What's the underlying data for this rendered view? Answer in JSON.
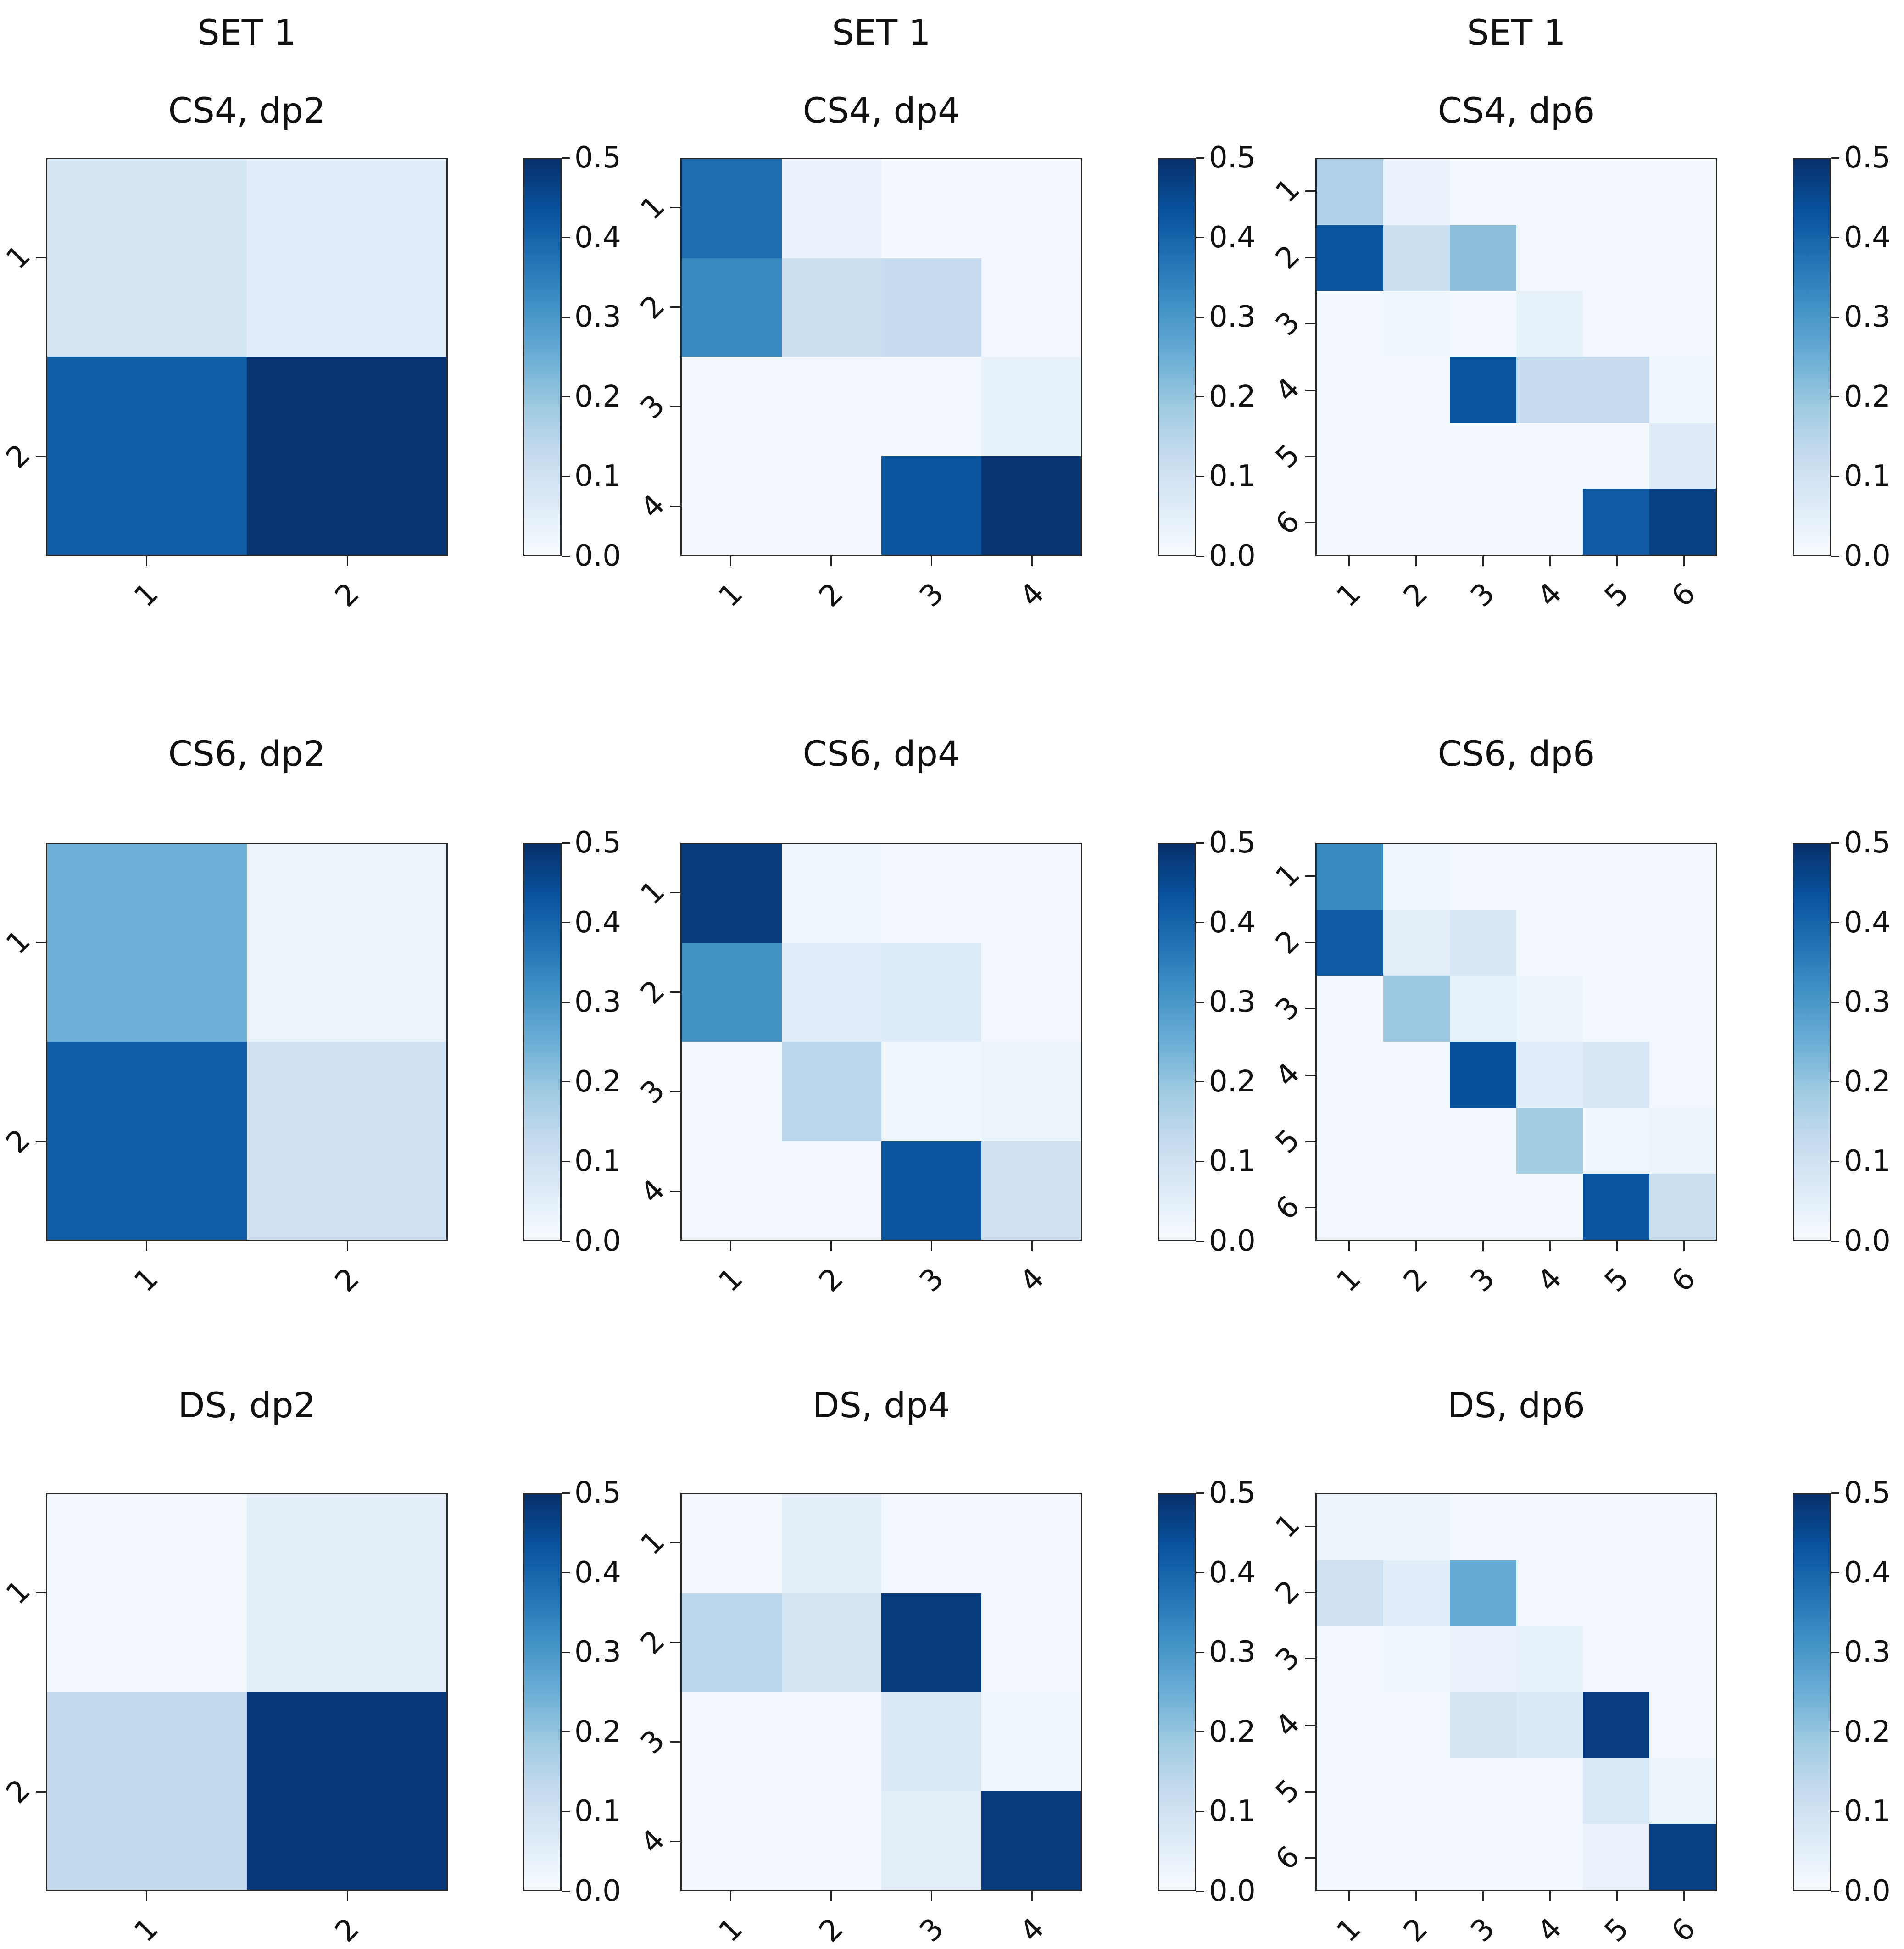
{
  "figure": {
    "suptitle": "SET 1",
    "background": "#ffffff",
    "text_color": "#111111"
  },
  "colorbar": {
    "vmin": 0.0,
    "vmax": 0.5,
    "ticks": [
      "0.0",
      "0.1",
      "0.2",
      "0.3",
      "0.4",
      "0.5"
    ],
    "orientation": "vertical",
    "colormap_name": "Blues",
    "colormap": [
      {
        "at": 0.0,
        "color": "#f7fbff"
      },
      {
        "at": 0.125,
        "color": "#deebf7"
      },
      {
        "at": 0.25,
        "color": "#c6dbef"
      },
      {
        "at": 0.375,
        "color": "#9ecae1"
      },
      {
        "at": 0.5,
        "color": "#6baed6"
      },
      {
        "at": 0.625,
        "color": "#4292c6"
      },
      {
        "at": 0.75,
        "color": "#2171b5"
      },
      {
        "at": 0.875,
        "color": "#08519c"
      },
      {
        "at": 1.0,
        "color": "#08306b"
      }
    ]
  },
  "chart_data": [
    {
      "type": "heatmap",
      "suptitle": "SET 1",
      "title": "CS4, dp2",
      "row_labels": [
        "1",
        "2"
      ],
      "col_labels": [
        "1",
        "2"
      ],
      "vmin": 0.0,
      "vmax": 0.5,
      "values": [
        [
          0.09,
          0.055
        ],
        [
          0.41,
          0.49
        ]
      ]
    },
    {
      "type": "heatmap",
      "suptitle": "SET 1",
      "title": "CS4, dp4",
      "row_labels": [
        "1",
        "2",
        "3",
        "4"
      ],
      "col_labels": [
        "1",
        "2",
        "3",
        "4"
      ],
      "vmin": 0.0,
      "vmax": 0.5,
      "values": [
        [
          0.38,
          0.035,
          0.01,
          0.01
        ],
        [
          0.33,
          0.11,
          0.12,
          0.015
        ],
        [
          0.01,
          0.015,
          0.01,
          0.04
        ],
        [
          0.01,
          0.01,
          0.43,
          0.49
        ]
      ]
    },
    {
      "type": "heatmap",
      "suptitle": "SET 1",
      "title": "CS4, dp6",
      "row_labels": [
        "1",
        "2",
        "3",
        "4",
        "5",
        "6"
      ],
      "col_labels": [
        "1",
        "2",
        "3",
        "4",
        "5",
        "6"
      ],
      "vmin": 0.0,
      "vmax": 0.5,
      "values": [
        [
          0.16,
          0.035,
          0.01,
          0.01,
          0.01,
          0.01
        ],
        [
          0.43,
          0.11,
          0.21,
          0.015,
          0.01,
          0.01
        ],
        [
          0.01,
          0.02,
          0.01,
          0.04,
          0.01,
          0.01
        ],
        [
          0.01,
          0.01,
          0.43,
          0.12,
          0.12,
          0.02
        ],
        [
          0.01,
          0.01,
          0.01,
          0.01,
          0.01,
          0.06
        ],
        [
          0.01,
          0.01,
          0.01,
          0.01,
          0.42,
          0.47
        ]
      ]
    },
    {
      "type": "heatmap",
      "title": "CS6, dp2",
      "row_labels": [
        "1",
        "2"
      ],
      "col_labels": [
        "1",
        "2"
      ],
      "vmin": 0.0,
      "vmax": 0.5,
      "values": [
        [
          0.25,
          0.03
        ],
        [
          0.41,
          0.105
        ]
      ]
    },
    {
      "type": "heatmap",
      "title": "CS6, dp4",
      "row_labels": [
        "1",
        "2",
        "3",
        "4"
      ],
      "col_labels": [
        "1",
        "2",
        "3",
        "4"
      ],
      "vmin": 0.0,
      "vmax": 0.5,
      "values": [
        [
          0.48,
          0.02,
          0.012,
          0.01
        ],
        [
          0.31,
          0.055,
          0.065,
          0.015
        ],
        [
          0.012,
          0.145,
          0.02,
          0.03
        ],
        [
          0.012,
          0.013,
          0.43,
          0.1
        ]
      ]
    },
    {
      "type": "heatmap",
      "title": "CS6, dp6",
      "row_labels": [
        "1",
        "2",
        "3",
        "4",
        "5",
        "6"
      ],
      "col_labels": [
        "1",
        "2",
        "3",
        "4",
        "5",
        "6"
      ],
      "vmin": 0.0,
      "vmax": 0.5,
      "values": [
        [
          0.33,
          0.018,
          0.01,
          0.01,
          0.01,
          0.01
        ],
        [
          0.42,
          0.05,
          0.08,
          0.01,
          0.01,
          0.01
        ],
        [
          0.01,
          0.19,
          0.04,
          0.025,
          0.01,
          0.01
        ],
        [
          0.01,
          0.01,
          0.44,
          0.055,
          0.08,
          0.015
        ],
        [
          0.01,
          0.01,
          0.01,
          0.18,
          0.02,
          0.03
        ],
        [
          0.01,
          0.01,
          0.01,
          0.01,
          0.43,
          0.11
        ]
      ]
    },
    {
      "type": "heatmap",
      "title": "DS, dp2",
      "row_labels": [
        "1",
        "2"
      ],
      "col_labels": [
        "1",
        "2"
      ],
      "vmin": 0.0,
      "vmax": 0.5,
      "values": [
        [
          0.012,
          0.045
        ],
        [
          0.13,
          0.485
        ]
      ]
    },
    {
      "type": "heatmap",
      "title": "DS, dp4",
      "row_labels": [
        "1",
        "2",
        "3",
        "4"
      ],
      "col_labels": [
        "1",
        "2",
        "3",
        "4"
      ],
      "vmin": 0.0,
      "vmax": 0.5,
      "values": [
        [
          0.01,
          0.045,
          0.015,
          0.01
        ],
        [
          0.14,
          0.09,
          0.48,
          0.01
        ],
        [
          0.015,
          0.015,
          0.07,
          0.02
        ],
        [
          0.01,
          0.012,
          0.05,
          0.48
        ]
      ]
    },
    {
      "type": "heatmap",
      "title": "DS, dp6",
      "row_labels": [
        "1",
        "2",
        "3",
        "4",
        "5",
        "6"
      ],
      "col_labels": [
        "1",
        "2",
        "3",
        "4",
        "5",
        "6"
      ],
      "vmin": 0.0,
      "vmax": 0.5,
      "values": [
        [
          0.03,
          0.025,
          0.01,
          0.01,
          0.01,
          0.01
        ],
        [
          0.1,
          0.055,
          0.26,
          0.01,
          0.01,
          0.01
        ],
        [
          0.01,
          0.018,
          0.035,
          0.04,
          0.01,
          0.01
        ],
        [
          0.01,
          0.01,
          0.085,
          0.07,
          0.475,
          0.015
        ],
        [
          0.01,
          0.01,
          0.01,
          0.015,
          0.075,
          0.03
        ],
        [
          0.01,
          0.01,
          0.01,
          0.01,
          0.035,
          0.47
        ]
      ]
    }
  ]
}
